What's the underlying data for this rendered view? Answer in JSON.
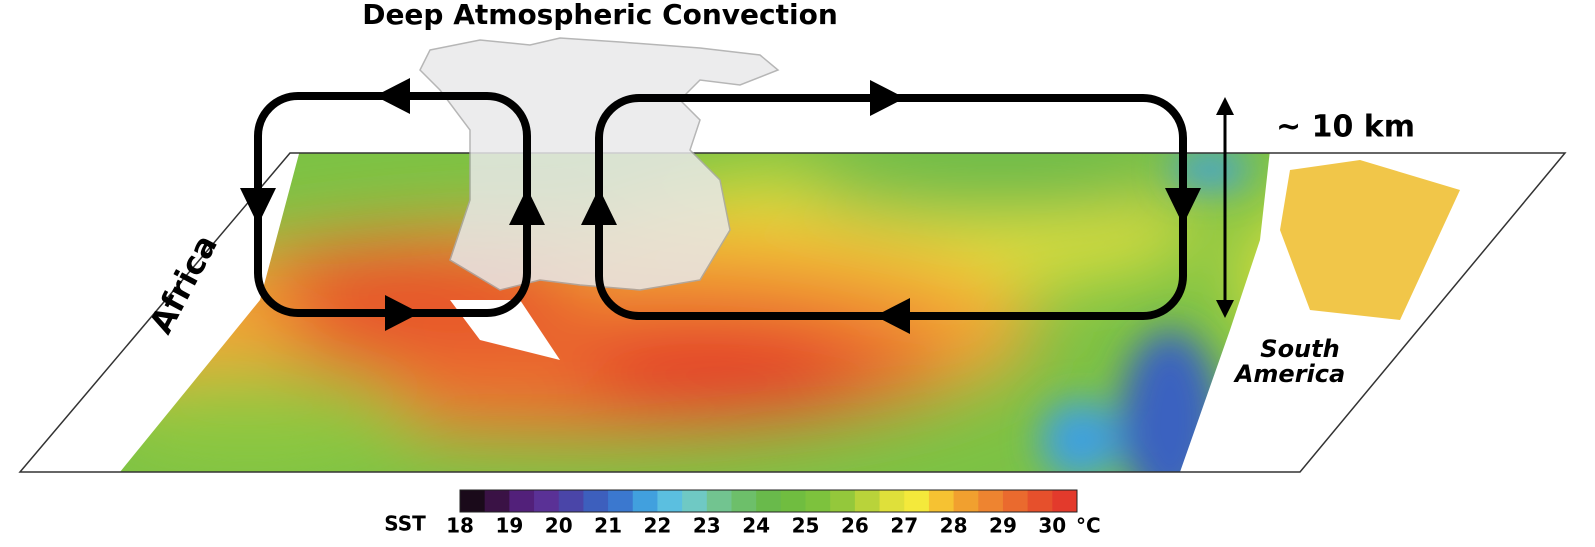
{
  "title": "Deep Atmospheric Convection",
  "height_label": "~ 10 km",
  "labels": {
    "africa": "Africa",
    "south_america": [
      "South",
      "America"
    ]
  },
  "colorbar": {
    "label": "SST",
    "unit": "°C",
    "ticks": [
      18,
      19,
      20,
      21,
      22,
      23,
      24,
      25,
      26,
      27,
      28,
      29,
      30
    ],
    "colors": [
      "#1a0a1a",
      "#3a1245",
      "#52207a",
      "#5a3196",
      "#4a45a8",
      "#3d5fbd",
      "#3b78cf",
      "#41a0de",
      "#5bbfe0",
      "#6fc9c4",
      "#72c490",
      "#6dbf6a",
      "#69ba4b",
      "#70bd40",
      "#7dc23d",
      "#94c83b",
      "#b9d33a",
      "#dfe03a",
      "#f4e93b",
      "#f6c232",
      "#f1a02f",
      "#ee8430",
      "#ea6a2e",
      "#e6502c",
      "#e33a2c"
    ]
  }
}
